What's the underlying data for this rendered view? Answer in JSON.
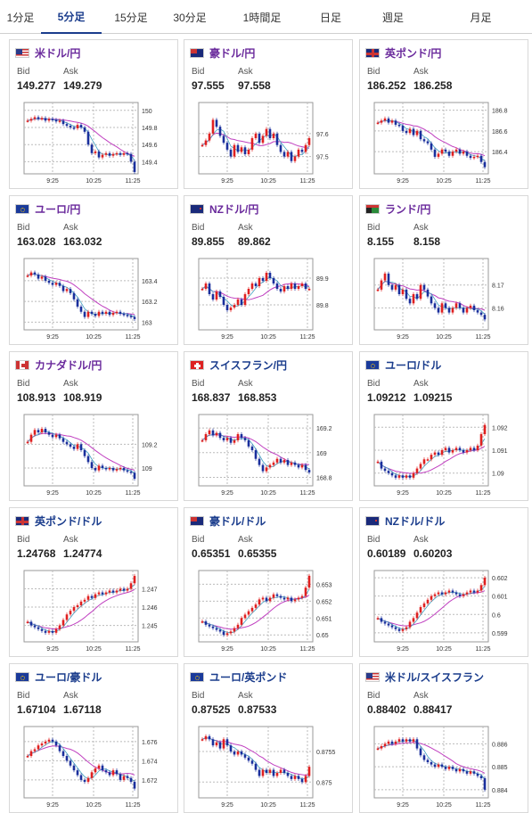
{
  "tabs": [
    {
      "label": "1分足",
      "active": false
    },
    {
      "label": "5分足",
      "active": true
    },
    {
      "label": "15分足",
      "active": false
    },
    {
      "label": "30分足",
      "active": false
    },
    {
      "label": "1時間足",
      "active": false
    },
    {
      "label": "日足",
      "active": false
    },
    {
      "label": "週足",
      "active": false
    },
    {
      "label": "月足",
      "active": false
    }
  ],
  "colors": {
    "active_tab": "#1a3c8c",
    "title_purple": "#6a2a9c",
    "title_blue": "#1a3c8c",
    "up": "#e02020",
    "down": "#1a2f9c",
    "ma": "#c040c0",
    "ma_short": "#40a0c0"
  },
  "cards": [
    {
      "title": "米ドル/円",
      "flag": "us",
      "bid_label": "Bid",
      "ask_label": "Ask",
      "bid": "149.277",
      "ask": "149.279",
      "title_color": "purple",
      "chart_data": {
        "type": "candlestick",
        "x_ticks": [
          "9:25",
          "10:25",
          "11:25"
        ],
        "y_ticks": [
          "150",
          "149.8",
          "149.6",
          "149.4"
        ],
        "ylim": [
          149.3,
          150.05
        ],
        "close": [
          149.88,
          149.9,
          149.92,
          149.9,
          149.91,
          149.88,
          149.9,
          149.89,
          149.87,
          149.88,
          149.84,
          149.82,
          149.8,
          149.79,
          149.83,
          149.8,
          149.75,
          149.6,
          149.5,
          149.52,
          149.45,
          149.48,
          149.5,
          149.47,
          149.49,
          149.5,
          149.48,
          149.5,
          149.49,
          149.4,
          149.28
        ]
      }
    },
    {
      "title": "豪ドル/円",
      "flag": "au",
      "bid_label": "Bid",
      "ask_label": "Ask",
      "bid": "97.555",
      "ask": "97.558",
      "title_color": "purple",
      "chart_data": {
        "type": "candlestick",
        "x_ticks": [
          "9:25",
          "10:25",
          "11:25"
        ],
        "y_ticks": [
          "97.6",
          "97.5"
        ],
        "ylim": [
          97.44,
          97.72
        ],
        "close": [
          97.55,
          97.57,
          97.6,
          97.66,
          97.63,
          97.59,
          97.56,
          97.53,
          97.5,
          97.55,
          97.52,
          97.54,
          97.51,
          97.53,
          97.58,
          97.6,
          97.56,
          97.59,
          97.62,
          97.58,
          97.6,
          97.55,
          97.52,
          97.5,
          97.52,
          97.48,
          97.5,
          97.53,
          97.52,
          97.55,
          97.58
        ]
      }
    },
    {
      "title": "英ポンド/円",
      "flag": "gb",
      "bid_label": "Bid",
      "ask_label": "Ask",
      "bid": "186.252",
      "ask": "186.258",
      "title_color": "purple",
      "chart_data": {
        "type": "candlestick",
        "x_ticks": [
          "9:25",
          "10:25",
          "11:25"
        ],
        "y_ticks": [
          "186.8",
          "186.6",
          "186.4"
        ],
        "ylim": [
          186.22,
          186.84
        ],
        "close": [
          186.68,
          186.7,
          186.72,
          186.68,
          186.7,
          186.66,
          186.65,
          186.6,
          186.58,
          186.62,
          186.56,
          186.6,
          186.52,
          186.5,
          186.48,
          186.42,
          186.35,
          186.38,
          186.42,
          186.4,
          186.36,
          186.4,
          186.42,
          186.38,
          186.4,
          186.36,
          186.34,
          186.35,
          186.36,
          186.3,
          186.25
        ]
      }
    },
    {
      "title": "ユーロ/円",
      "flag": "eu",
      "bid_label": "Bid",
      "ask_label": "Ask",
      "bid": "163.028",
      "ask": "163.032",
      "title_color": "purple",
      "chart_data": {
        "type": "candlestick",
        "x_ticks": [
          "9:25",
          "10:25",
          "11:25"
        ],
        "y_ticks": [
          "163.4",
          "163.2",
          "163"
        ],
        "ylim": [
          162.96,
          163.58
        ],
        "close": [
          163.45,
          163.48,
          163.46,
          163.42,
          163.44,
          163.4,
          163.38,
          163.36,
          163.38,
          163.35,
          163.3,
          163.32,
          163.28,
          163.22,
          163.15,
          163.1,
          163.05,
          163.1,
          163.08,
          163.06,
          163.1,
          163.08,
          163.1,
          163.07,
          163.09,
          163.1,
          163.08,
          163.07,
          163.06,
          163.05,
          163.03
        ]
      }
    },
    {
      "title": "NZドル/円",
      "flag": "nz",
      "bid_label": "Bid",
      "ask_label": "Ask",
      "bid": "89.855",
      "ask": "89.862",
      "title_color": "purple",
      "chart_data": {
        "type": "candlestick",
        "x_ticks": [
          "9:25",
          "10:25",
          "11:25"
        ],
        "y_ticks": [
          "89.9",
          "89.8"
        ],
        "ylim": [
          89.72,
          89.96
        ],
        "close": [
          89.86,
          89.88,
          89.84,
          89.82,
          89.85,
          89.83,
          89.8,
          89.78,
          89.79,
          89.8,
          89.82,
          89.8,
          89.84,
          89.86,
          89.88,
          89.87,
          89.9,
          89.89,
          89.92,
          89.9,
          89.88,
          89.86,
          89.85,
          89.87,
          89.86,
          89.88,
          89.86,
          89.87,
          89.88,
          89.86,
          89.86
        ]
      }
    },
    {
      "title": "ランド/円",
      "flag": "za",
      "bid_label": "Bid",
      "ask_label": "Ask",
      "bid": "8.155",
      "ask": "8.158",
      "title_color": "purple",
      "chart_data": {
        "type": "candlestick",
        "x_ticks": [
          "9:25",
          "10:25",
          "11:25"
        ],
        "y_ticks": [
          "8.17",
          "8.16"
        ],
        "ylim": [
          8.152,
          8.18
        ],
        "close": [
          8.168,
          8.172,
          8.175,
          8.17,
          8.168,
          8.17,
          8.166,
          8.168,
          8.164,
          8.162,
          8.166,
          8.164,
          8.17,
          8.168,
          8.165,
          8.162,
          8.16,
          8.158,
          8.162,
          8.16,
          8.158,
          8.16,
          8.162,
          8.16,
          8.158,
          8.16,
          8.161,
          8.159,
          8.158,
          8.157,
          8.155
        ]
      }
    },
    {
      "title": "カナダドル/円",
      "flag": "ca",
      "bid_label": "Bid",
      "ask_label": "Ask",
      "bid": "108.913",
      "ask": "108.919",
      "title_color": "purple",
      "chart_data": {
        "type": "candlestick",
        "x_ticks": [
          "9:25",
          "10:25",
          "11:25"
        ],
        "y_ticks": [
          "109.2",
          "109"
        ],
        "ylim": [
          108.88,
          109.42
        ],
        "close": [
          109.22,
          109.28,
          109.32,
          109.3,
          109.33,
          109.3,
          109.28,
          109.26,
          109.28,
          109.25,
          109.22,
          109.2,
          109.18,
          109.16,
          109.2,
          109.15,
          109.1,
          109.05,
          109.0,
          108.98,
          109.02,
          109.0,
          108.99,
          109.0,
          108.98,
          108.99,
          109.0,
          108.98,
          108.97,
          108.96,
          108.91
        ]
      }
    },
    {
      "title": "スイスフラン/円",
      "flag": "ch",
      "bid_label": "Bid",
      "ask_label": "Ask",
      "bid": "168.837",
      "ask": "168.853",
      "title_color": "blue",
      "chart_data": {
        "type": "candlestick",
        "x_ticks": [
          "9:25",
          "10:25",
          "11:25"
        ],
        "y_ticks": [
          "169.2",
          "169",
          "168.8"
        ],
        "ylim": [
          168.76,
          169.28
        ],
        "close": [
          169.1,
          169.15,
          169.18,
          169.14,
          169.16,
          169.12,
          169.1,
          169.12,
          169.08,
          169.1,
          169.15,
          169.12,
          169.1,
          169.05,
          169.02,
          168.95,
          168.9,
          168.85,
          168.88,
          168.9,
          168.92,
          168.95,
          168.92,
          168.94,
          168.9,
          168.92,
          168.9,
          168.88,
          168.9,
          168.86,
          168.84
        ]
      }
    },
    {
      "title": "ユーロ/ドル",
      "flag": "eu",
      "bid_label": "Bid",
      "ask_label": "Ask",
      "bid": "1.09212",
      "ask": "1.09215",
      "title_color": "blue",
      "chart_data": {
        "type": "candlestick",
        "x_ticks": [
          "9:25",
          "10:25",
          "11:25"
        ],
        "y_ticks": [
          "1.092",
          "1.091",
          "1.09"
        ],
        "ylim": [
          1.0896,
          1.0924
        ],
        "close": [
          1.0905,
          1.0902,
          1.0901,
          1.09,
          1.0899,
          1.0898,
          1.0899,
          1.0898,
          1.0899,
          1.0898,
          1.09,
          1.0902,
          1.0904,
          1.0906,
          1.0906,
          1.0908,
          1.0909,
          1.0908,
          1.091,
          1.0911,
          1.0909,
          1.091,
          1.0911,
          1.091,
          1.0909,
          1.091,
          1.0911,
          1.091,
          1.0912,
          1.0917,
          1.0921
        ]
      }
    },
    {
      "title": "英ポンド/ドル",
      "flag": "gb",
      "bid_label": "Bid",
      "ask_label": "Ask",
      "bid": "1.24768",
      "ask": "1.24774",
      "title_color": "blue",
      "chart_data": {
        "type": "candlestick",
        "x_ticks": [
          "9:25",
          "10:25",
          "11:25"
        ],
        "y_ticks": [
          "1.247",
          "1.246",
          "1.245"
        ],
        "ylim": [
          1.2443,
          1.2478
        ],
        "close": [
          1.2452,
          1.245,
          1.2449,
          1.2448,
          1.2447,
          1.2446,
          1.2447,
          1.2446,
          1.2448,
          1.245,
          1.2453,
          1.2456,
          1.2458,
          1.246,
          1.2461,
          1.2463,
          1.2464,
          1.2466,
          1.2465,
          1.2467,
          1.2468,
          1.2467,
          1.2468,
          1.2469,
          1.2468,
          1.2469,
          1.247,
          1.2469,
          1.247,
          1.2473,
          1.2477
        ]
      }
    },
    {
      "title": "豪ドル/ドル",
      "flag": "au",
      "bid_label": "Bid",
      "ask_label": "Ask",
      "bid": "0.65351",
      "ask": "0.65355",
      "title_color": "blue",
      "chart_data": {
        "type": "candlestick",
        "x_ticks": [
          "9:25",
          "10:25",
          "11:25"
        ],
        "y_ticks": [
          "0.653",
          "0.652",
          "0.651",
          "0.65"
        ],
        "ylim": [
          0.6498,
          0.6536
        ],
        "close": [
          0.6508,
          0.6506,
          0.6505,
          0.6504,
          0.6503,
          0.6502,
          0.65,
          0.6501,
          0.6502,
          0.6504,
          0.6506,
          0.651,
          0.6512,
          0.6514,
          0.6516,
          0.6518,
          0.6521,
          0.6522,
          0.652,
          0.6522,
          0.6524,
          0.6523,
          0.6522,
          0.6521,
          0.6522,
          0.652,
          0.6521,
          0.6522,
          0.6523,
          0.6528,
          0.6535
        ]
      }
    },
    {
      "title": "NZドル/ドル",
      "flag": "nz",
      "bid_label": "Bid",
      "ask_label": "Ask",
      "bid": "0.60189",
      "ask": "0.60203",
      "title_color": "blue",
      "chart_data": {
        "type": "candlestick",
        "x_ticks": [
          "9:25",
          "10:25",
          "11:25"
        ],
        "y_ticks": [
          "0.602",
          "0.601",
          "0.6",
          "0.599"
        ],
        "ylim": [
          0.5987,
          0.6022
        ],
        "close": [
          0.5998,
          0.5996,
          0.5995,
          0.5994,
          0.5993,
          0.5992,
          0.5991,
          0.5992,
          0.5993,
          0.5996,
          0.5998,
          0.6001,
          0.6004,
          0.6006,
          0.6008,
          0.601,
          0.6011,
          0.6012,
          0.6011,
          0.6012,
          0.6013,
          0.6012,
          0.6011,
          0.601,
          0.6011,
          0.6012,
          0.6013,
          0.6012,
          0.6013,
          0.6016,
          0.602
        ]
      }
    },
    {
      "title": "ユーロ/豪ドル",
      "flag": "eu",
      "bid_label": "Bid",
      "ask_label": "Ask",
      "bid": "1.67104",
      "ask": "1.67118",
      "title_color": "blue",
      "chart_data": {
        "type": "candlestick",
        "x_ticks": [
          "9:25",
          "10:25",
          "11:25"
        ],
        "y_ticks": [
          "1.676",
          "1.674",
          "1.672"
        ],
        "ylim": [
          1.6705,
          1.6772
        ],
        "close": [
          1.6745,
          1.675,
          1.6752,
          1.6756,
          1.6758,
          1.676,
          1.6762,
          1.676,
          1.6756,
          1.675,
          1.6745,
          1.674,
          1.6735,
          1.673,
          1.6725,
          1.672,
          1.6718,
          1.6722,
          1.6728,
          1.6732,
          1.6735,
          1.673,
          1.6728,
          1.6725,
          1.673,
          1.6726,
          1.672,
          1.6724,
          1.6722,
          1.6718,
          1.6711
        ]
      }
    },
    {
      "title": "ユーロ/英ポンド",
      "flag": "eu",
      "bid_label": "Bid",
      "ask_label": "Ask",
      "bid": "0.87525",
      "ask": "0.87533",
      "title_color": "blue",
      "chart_data": {
        "type": "candlestick",
        "x_ticks": [
          "9:25",
          "10:25",
          "11:25"
        ],
        "y_ticks": [
          "0.8755",
          "0.875"
        ],
        "ylim": [
          0.8748,
          0.87585
        ],
        "close": [
          0.8757,
          0.87575,
          0.8757,
          0.8756,
          0.87565,
          0.87555,
          0.8757,
          0.8756,
          0.8755,
          0.87545,
          0.8755,
          0.87545,
          0.8754,
          0.87535,
          0.8753,
          0.8752,
          0.8751,
          0.8752,
          0.87515,
          0.8752,
          0.8751,
          0.87515,
          0.8752,
          0.87515,
          0.8751,
          0.87505,
          0.8751,
          0.87505,
          0.875,
          0.8751,
          0.87525
        ]
      }
    },
    {
      "title": "米ドル/スイスフラン",
      "flag": "us",
      "bid_label": "Bid",
      "ask_label": "Ask",
      "bid": "0.88402",
      "ask": "0.88417",
      "title_color": "blue",
      "chart_data": {
        "type": "candlestick",
        "x_ticks": [
          "9:25",
          "10:25",
          "11:25"
        ],
        "y_ticks": [
          "0.886",
          "0.885",
          "0.884"
        ],
        "ylim": [
          0.8838,
          0.8866
        ],
        "close": [
          0.8858,
          0.8859,
          0.886,
          0.8861,
          0.886,
          0.8861,
          0.8862,
          0.8861,
          0.8862,
          0.8861,
          0.8862,
          0.8858,
          0.8855,
          0.8853,
          0.8852,
          0.8851,
          0.885,
          0.8851,
          0.885,
          0.8849,
          0.885,
          0.8849,
          0.8848,
          0.8849,
          0.8848,
          0.8847,
          0.8848,
          0.8847,
          0.8846,
          0.8845,
          0.884
        ]
      }
    }
  ]
}
